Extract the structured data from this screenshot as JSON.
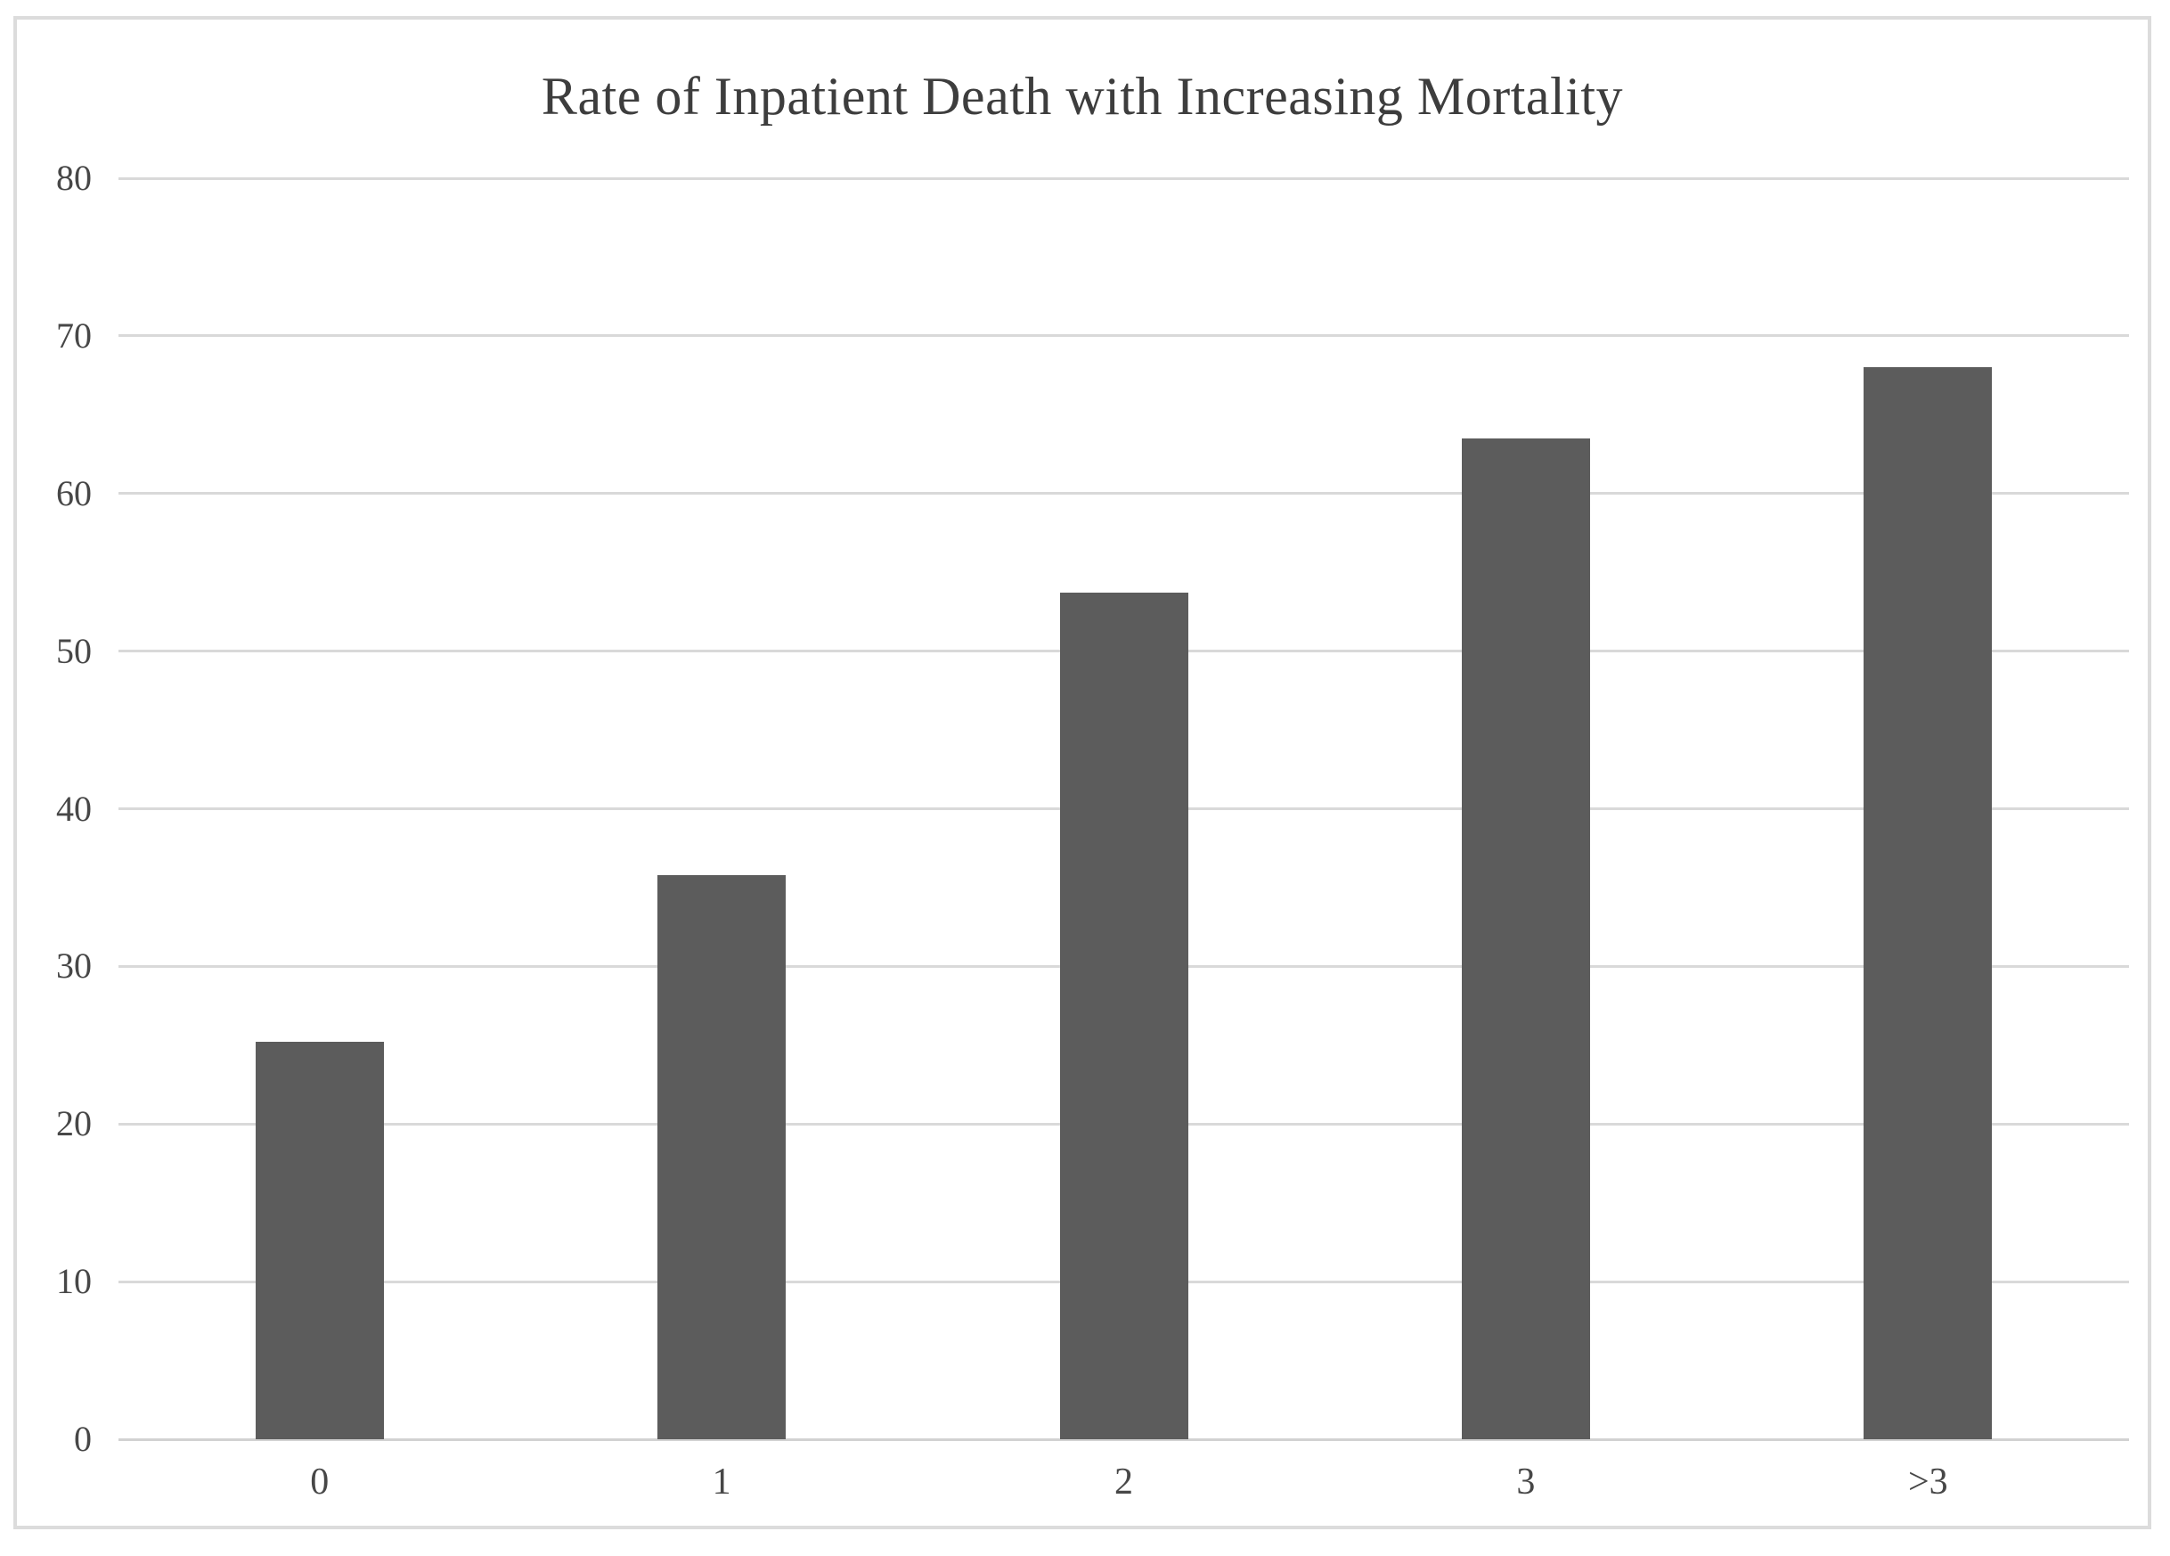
{
  "chart_data": {
    "type": "bar",
    "title": "Rate of Inpatient Death with Increasing Mortality",
    "categories": [
      "0",
      "1",
      "2",
      "3",
      ">3"
    ],
    "values": [
      25.2,
      35.8,
      53.7,
      63.5,
      68
    ],
    "series_name": "Rate of inpatient death",
    "xlabel": "",
    "ylabel": "",
    "ylim": [
      0,
      80
    ],
    "yticks": [
      0,
      10,
      20,
      30,
      40,
      50,
      60,
      70,
      80
    ],
    "grid": true,
    "legend_visible": false,
    "bar_color": "#5c5c5c",
    "gridline_color": "#d9d9d9",
    "axis_line_color": "#d2d2d2",
    "tick_label_color": "#474747",
    "title_color": "#3d3d3d",
    "frame_border_color": "#dcdcdc",
    "background_color": "#ffffff"
  }
}
